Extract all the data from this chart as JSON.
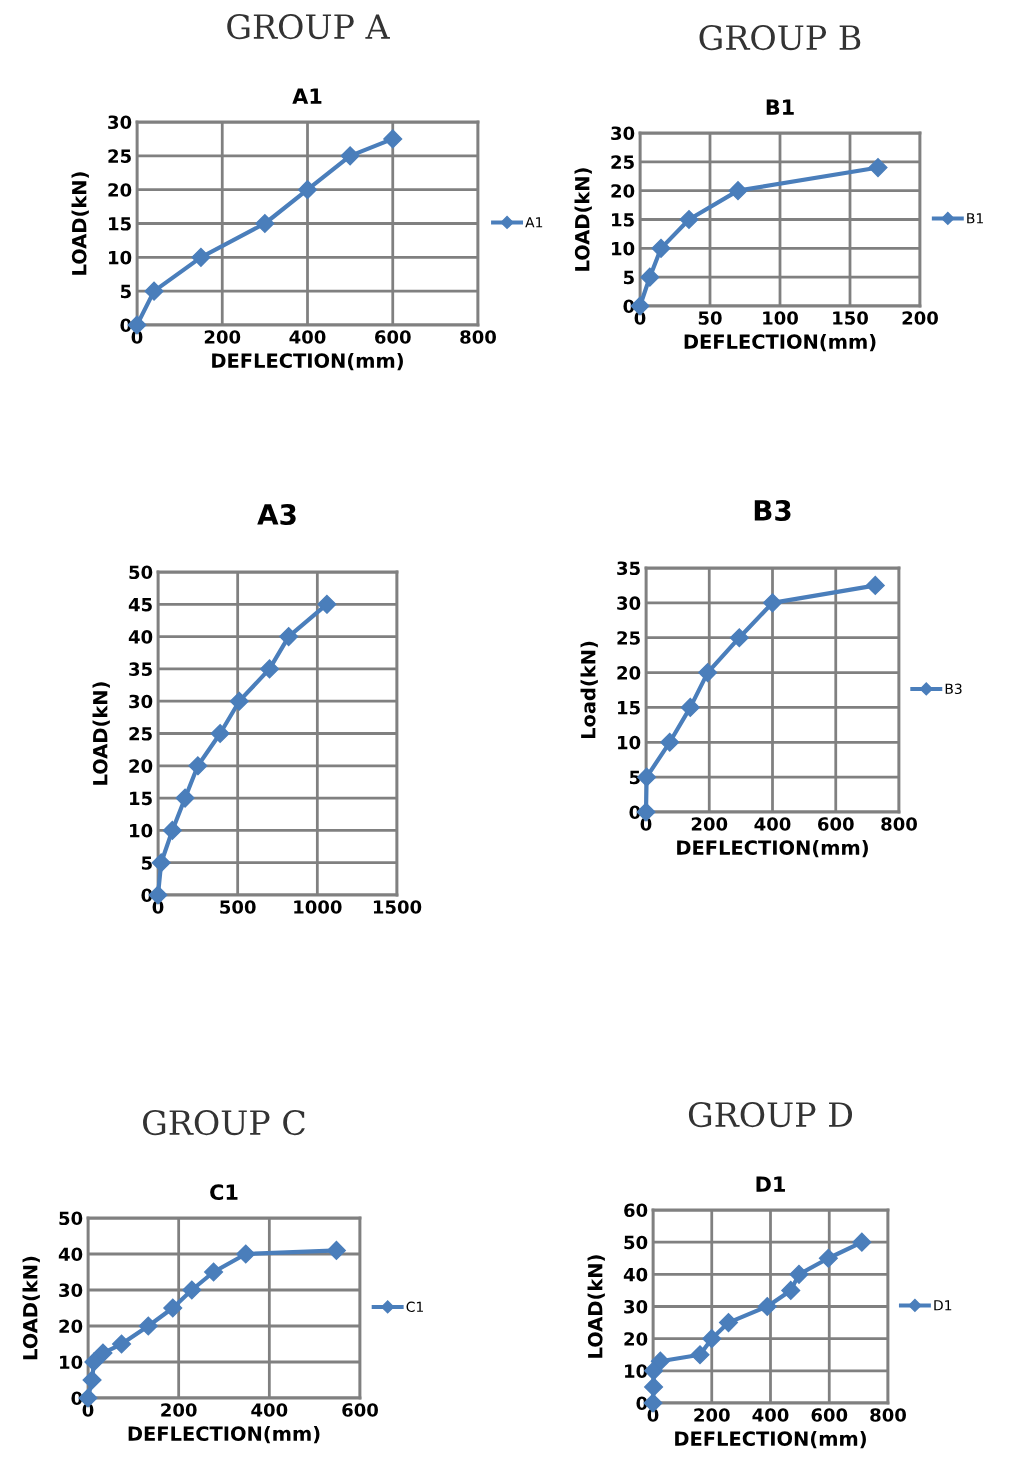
{
  "chart_data": [
    {
      "type": "line",
      "title": "GROUP A",
      "subtitle": "A1",
      "xlabel": "DEFLECTION(mm)",
      "ylabel": "LOAD(kN)",
      "xlim": [
        0,
        800
      ],
      "xticks": [
        0,
        200,
        400,
        600,
        800
      ],
      "ylim": [
        0,
        30
      ],
      "yticks": [
        0,
        5,
        10,
        15,
        20,
        25,
        30
      ],
      "grid": true,
      "legend": "right",
      "marker": "diamond",
      "line_style": "solid",
      "series": [
        {
          "name": "A1",
          "color": "#4a7ebb",
          "x": [
            0,
            40,
            150,
            300,
            400,
            500,
            600
          ],
          "values": [
            0,
            5,
            10,
            15,
            20,
            25,
            27.5
          ]
        }
      ]
    },
    {
      "type": "line",
      "title": "GROUP B",
      "subtitle": "B1",
      "xlabel": "DEFLECTION(mm)",
      "ylabel": "LOAD(kN)",
      "xlim": [
        0,
        200
      ],
      "xticks": [
        0,
        50,
        100,
        150,
        200
      ],
      "ylim": [
        0,
        30
      ],
      "yticks": [
        0,
        5,
        10,
        15,
        20,
        25,
        30
      ],
      "grid": true,
      "legend": "right",
      "marker": "diamond",
      "line_style": "solid",
      "series": [
        {
          "name": "B1",
          "color": "#4a7ebb",
          "x": [
            0,
            7,
            15,
            35,
            70,
            170
          ],
          "values": [
            0,
            5,
            10,
            15,
            20,
            24
          ]
        }
      ]
    },
    {
      "type": "line",
      "title": "A3",
      "ylabel": "LOAD(kN)",
      "xlim": [
        0,
        1500
      ],
      "xticks": [
        0,
        500,
        1000,
        1500
      ],
      "ylim": [
        0,
        50
      ],
      "yticks": [
        0,
        5,
        10,
        15,
        20,
        25,
        30,
        35,
        40,
        45,
        50
      ],
      "grid": true,
      "marker": "diamond",
      "line_style": "solid",
      "series": [
        {
          "color": "#4a7ebb",
          "x": [
            0,
            20,
            90,
            170,
            250,
            390,
            510,
            700,
            820,
            1060
          ],
          "values": [
            0,
            5,
            10,
            15,
            20,
            25,
            30,
            35,
            40,
            45
          ]
        }
      ]
    },
    {
      "type": "line",
      "title": "B3",
      "xlabel": "DEFLECTION(mm)",
      "ylabel": "Load(kN)",
      "xlim": [
        0,
        800
      ],
      "xticks": [
        0,
        200,
        400,
        600,
        800
      ],
      "ylim": [
        0,
        35
      ],
      "yticks": [
        0,
        5,
        10,
        15,
        20,
        25,
        30,
        35
      ],
      "grid": true,
      "legend": "right",
      "marker": "diamond",
      "line_style": "solid",
      "series": [
        {
          "name": "B3",
          "color": "#4a7ebb",
          "x": [
            0,
            2,
            75,
            140,
            195,
            295,
            400,
            725
          ],
          "values": [
            0,
            5,
            10,
            15,
            20,
            25,
            30,
            32.5
          ]
        }
      ]
    },
    {
      "type": "line",
      "title": "GROUP C",
      "subtitle": "C1",
      "xlabel": "DEFLECTION(mm)",
      "ylabel": "LOAD(kN)",
      "xlim": [
        0,
        600
      ],
      "xticks": [
        0,
        200,
        400,
        600
      ],
      "ylim": [
        0,
        50
      ],
      "yticks": [
        0,
        10,
        20,
        30,
        40,
        50
      ],
      "grid": true,
      "legend": "right",
      "marker": "diamond",
      "line_style": "solid",
      "series": [
        {
          "name": "C1",
          "color": "#4a7ebb",
          "x": [
            0,
            9,
            13,
            33,
            74,
            133,
            187,
            229,
            277,
            348,
            548
          ],
          "values": [
            0,
            5,
            10,
            12.5,
            15,
            20,
            25,
            30,
            35,
            40,
            41
          ]
        }
      ]
    },
    {
      "type": "line",
      "title": "GROUP D",
      "subtitle": "D1",
      "xlabel": "DEFLECTION(mm)",
      "ylabel": "LOAD(kN)",
      "xlim": [
        0,
        800
      ],
      "xticks": [
        0,
        200,
        400,
        600,
        800
      ],
      "ylim": [
        0,
        60
      ],
      "yticks": [
        0,
        10,
        20,
        30,
        40,
        50,
        60
      ],
      "grid": true,
      "legend": "right",
      "marker": "diamond",
      "line_style": "solid",
      "series": [
        {
          "name": "D1",
          "color": "#4a7ebb",
          "x": [
            0,
            2,
            2,
            25,
            160,
            200,
            257,
            389,
            469,
            497,
            597,
            711
          ],
          "values": [
            0,
            5,
            10,
            13,
            15,
            20,
            25,
            30,
            35,
            40,
            45,
            50
          ]
        }
      ]
    }
  ]
}
